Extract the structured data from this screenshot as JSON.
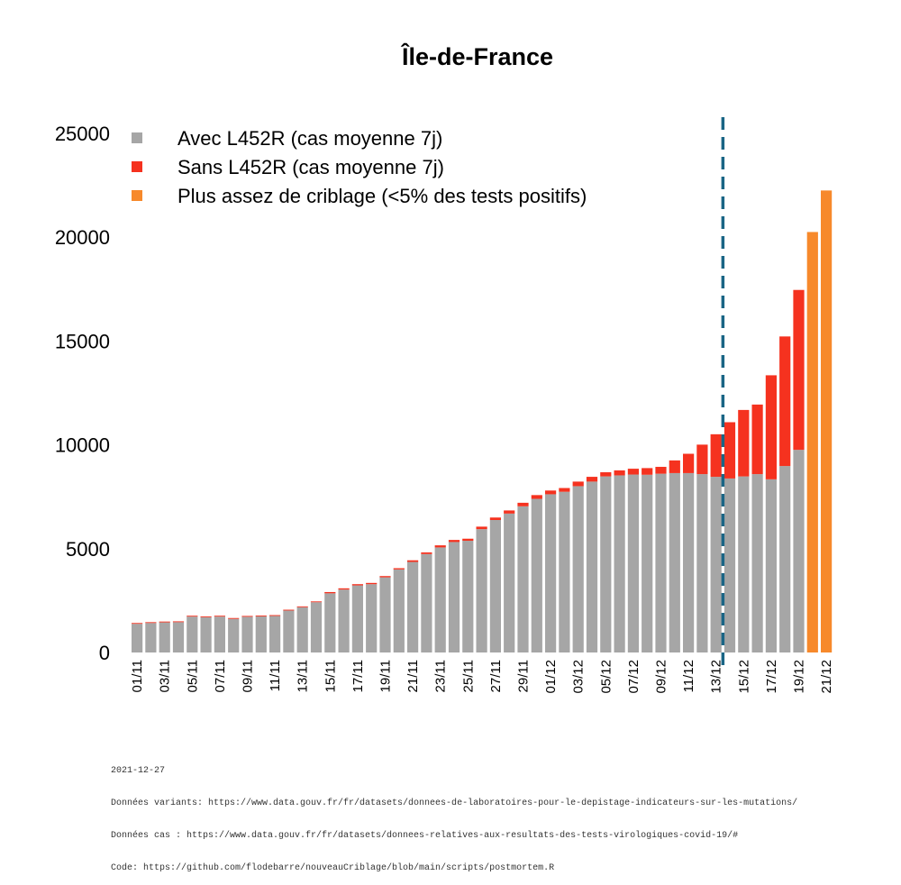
{
  "chart_data": {
    "type": "bar",
    "title": "Île-de-France",
    "stacked": true,
    "ylim": [
      0,
      25000
    ],
    "yticks": [
      0,
      5000,
      10000,
      15000,
      20000,
      25000
    ],
    "x_tick_labels_every": 2,
    "categories": [
      "01/11",
      "02/11",
      "03/11",
      "04/11",
      "05/11",
      "06/11",
      "07/11",
      "08/11",
      "09/11",
      "10/11",
      "11/11",
      "12/11",
      "13/11",
      "14/11",
      "15/11",
      "16/11",
      "17/11",
      "18/11",
      "19/11",
      "20/11",
      "21/11",
      "22/11",
      "23/11",
      "24/11",
      "25/11",
      "26/11",
      "27/11",
      "28/11",
      "29/11",
      "30/11",
      "01/12",
      "02/12",
      "03/12",
      "04/12",
      "05/12",
      "06/12",
      "07/12",
      "08/12",
      "09/12",
      "10/12",
      "11/12",
      "12/12",
      "13/12",
      "14/12",
      "15/12",
      "16/12",
      "17/12",
      "18/12",
      "19/12",
      "20/12",
      "21/12"
    ],
    "series": [
      {
        "name": "Avec L452R (cas moyenne 7j)",
        "color": "#a6a6a6",
        "values": [
          1380,
          1420,
          1450,
          1460,
          1730,
          1700,
          1730,
          1620,
          1720,
          1740,
          1760,
          2020,
          2180,
          2420,
          2850,
          3030,
          3230,
          3290,
          3620,
          4000,
          4360,
          4740,
          5060,
          5320,
          5380,
          5940,
          6380,
          6690,
          7040,
          7400,
          7620,
          7740,
          8010,
          8230,
          8480,
          8530,
          8570,
          8560,
          8610,
          8640,
          8640,
          8590,
          8460,
          8380,
          8480,
          8590,
          8340,
          8980,
          9760,
          0,
          0
        ]
      },
      {
        "name": "Sans L452R (cas moyenne 7j)",
        "color": "#f5321f",
        "values": [
          40,
          40,
          40,
          40,
          40,
          40,
          40,
          40,
          40,
          40,
          40,
          40,
          40,
          40,
          60,
          60,
          60,
          60,
          60,
          60,
          80,
          80,
          100,
          100,
          100,
          120,
          120,
          150,
          170,
          180,
          180,
          180,
          220,
          230,
          200,
          240,
          280,
          320,
          330,
          610,
          930,
          1420,
          2050,
          2710,
          3200,
          3350,
          5010,
          6240,
          7700,
          0,
          0
        ]
      },
      {
        "name": "Plus assez de criblage (<5% des tests positifs)",
        "color": "#f7892b",
        "values": [
          0,
          0,
          0,
          0,
          0,
          0,
          0,
          0,
          0,
          0,
          0,
          0,
          0,
          0,
          0,
          0,
          0,
          0,
          0,
          0,
          0,
          0,
          0,
          0,
          0,
          0,
          0,
          0,
          0,
          0,
          0,
          0,
          0,
          0,
          0,
          0,
          0,
          0,
          0,
          0,
          0,
          0,
          0,
          0,
          0,
          0,
          0,
          0,
          0,
          20250,
          22250
        ]
      }
    ],
    "vline": {
      "after_category": "13/12",
      "style": "dashed",
      "color": "#1a6585"
    },
    "legend_placement": "top-left",
    "grid": false
  },
  "footer": {
    "date": "2021-12-27",
    "variants": "Données variants: https://www.data.gouv.fr/fr/datasets/donnees-de-laboratoires-pour-le-depistage-indicateurs-sur-les-mutations/",
    "cases": "Données cas : https://www.data.gouv.fr/fr/datasets/donnees-relatives-aux-resultats-des-tests-virologiques-covid-19/#",
    "code": "Code: https://github.com/flodebarre/nouveauCriblage/blob/main/scripts/postmortem.R"
  }
}
